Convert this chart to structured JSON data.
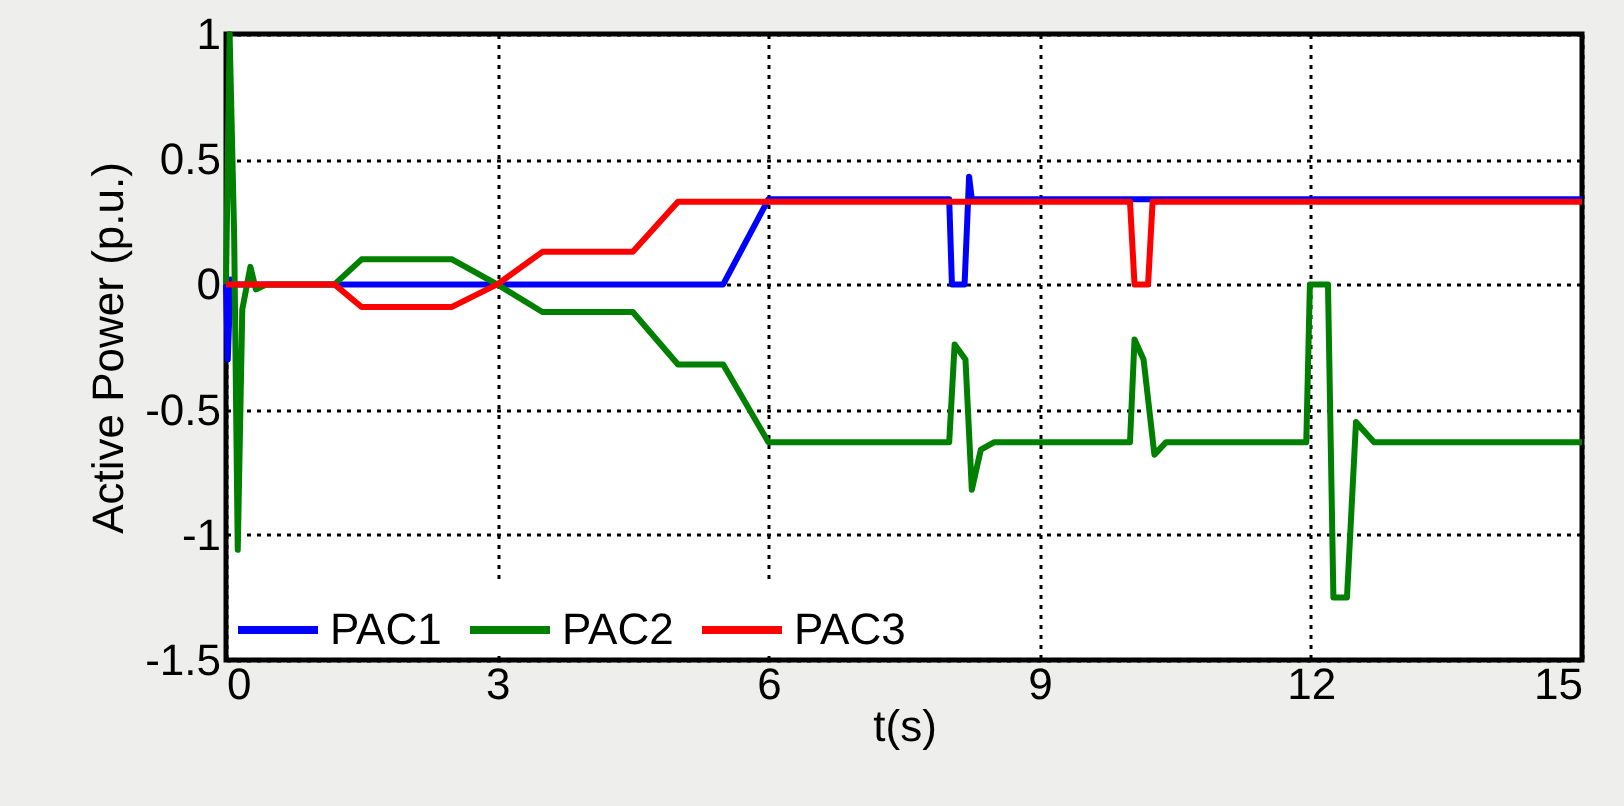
{
  "chart_data": {
    "type": "line",
    "xlabel": "t(s)",
    "ylabel": "Active Power (p.u.)",
    "xlim": [
      0,
      15
    ],
    "xticks": [
      0,
      3,
      6,
      9,
      12,
      15
    ],
    "ylim": [
      -1.5,
      1
    ],
    "yticks": [
      -1.5,
      -1,
      -0.5,
      0,
      0.5,
      1
    ],
    "grid": true,
    "legend": "bottom left",
    "marker": "none",
    "line_style": "solid",
    "series": [
      {
        "name": "PAC1",
        "color": "#0000ff",
        "x": [
          0,
          0.02,
          0.05,
          0.1,
          5.5,
          6.0,
          8.0,
          8.03,
          8.17,
          8.22,
          8.25,
          8.3,
          15
        ],
        "values": [
          0,
          -0.3,
          0.02,
          0,
          0,
          0.34,
          0.34,
          0,
          0,
          0.43,
          0.34,
          0.34,
          0.34
        ]
      },
      {
        "name": "PAC2",
        "color": "#008000",
        "x": [
          0,
          0.04,
          0.09,
          0.13,
          0.18,
          0.27,
          0.33,
          0.45,
          1.2,
          1.5,
          2.5,
          3.0,
          3.5,
          4.5,
          5.0,
          5.5,
          6.0,
          8.0,
          8.06,
          8.18,
          8.25,
          8.35,
          8.5,
          10.0,
          10.05,
          10.15,
          10.27,
          10.4,
          11.95,
          11.99,
          12.19,
          12.25,
          12.4,
          12.5,
          12.7,
          15
        ],
        "values": [
          0,
          1.0,
          0.2,
          -1.06,
          -0.1,
          0.07,
          -0.02,
          0,
          0,
          0.1,
          0.1,
          0,
          -0.11,
          -0.11,
          -0.32,
          -0.32,
          -0.63,
          -0.63,
          -0.24,
          -0.3,
          -0.82,
          -0.66,
          -0.63,
          -0.63,
          -0.22,
          -0.3,
          -0.68,
          -0.63,
          -0.63,
          0.0,
          0.0,
          -1.25,
          -1.25,
          -0.55,
          -0.63,
          -0.63
        ]
      },
      {
        "name": "PAC3",
        "color": "#ff0000",
        "x": [
          0,
          1.2,
          1.5,
          2.5,
          3.0,
          3.5,
          4.5,
          5.0,
          10.0,
          10.05,
          10.2,
          10.25,
          15
        ],
        "values": [
          0,
          0,
          -0.09,
          -0.09,
          0,
          0.13,
          0.13,
          0.33,
          0.33,
          0,
          0,
          0.33,
          0.33
        ]
      }
    ]
  }
}
